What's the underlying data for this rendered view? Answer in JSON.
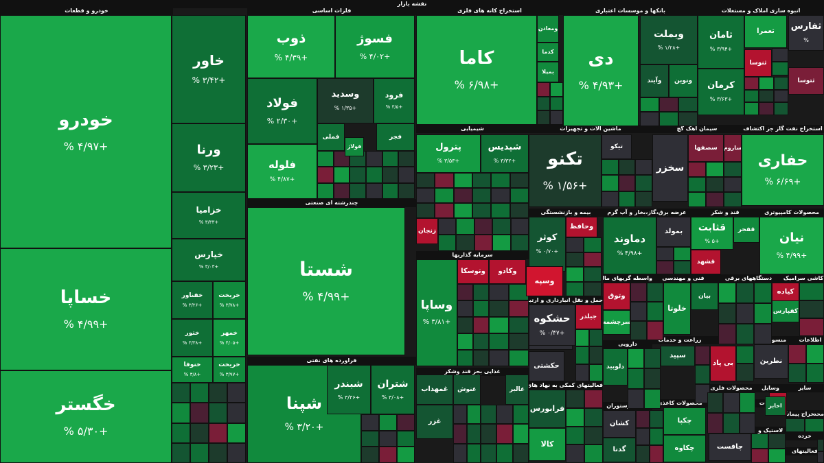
{
  "title": "نقشه بازار",
  "colors": {
    "g5": "#1aa84a",
    "g4": "#149b43",
    "g3": "#118a3d",
    "g2": "#0f6f36",
    "g1": "#145532",
    "g0": "#1d3b2c",
    "n": "#2f2f36",
    "r1": "#4a1f33",
    "r2": "#7a1e38",
    "r3": "#b3132f",
    "r4": "#d1152f"
  },
  "sectors": [
    {
      "label": "خودرو و قطعات"
    },
    {
      "label": "فلزات اساسی"
    },
    {
      "label": "استخراج کانه های فلزی"
    },
    {
      "label": "بانکها و موسسات اعتباری"
    },
    {
      "label": "انبوه سازی املاک و مستغلات"
    },
    {
      "label": "چندرشته ای صنعتی"
    },
    {
      "label": "شیمیایی"
    },
    {
      "label": "ماشین آلات و تجهیزات"
    },
    {
      "label": "سیمان آهک گچ"
    },
    {
      "label": "استخراج نفت گاز جز اکتشاف"
    },
    {
      "label": "بیمه و بازنشستگی"
    },
    {
      "label": "عرضه برق،گاز،بخار و آب گرم"
    },
    {
      "label": "قند و شکر"
    },
    {
      "label": "محصولات کامپیوتری"
    },
    {
      "label": "سرمایه گذاریها"
    },
    {
      "label": "فراورده های نفتی"
    },
    {
      "label": "فنی و مهندسی"
    },
    {
      "label": "واسطه گریهای مالی و پولی"
    },
    {
      "label": "دستگاههای برقی"
    },
    {
      "label": "کاشی سرامیک"
    },
    {
      "label": "حمل و نقل انبارداری و ارتباطات"
    },
    {
      "label": "دارویی"
    },
    {
      "label": "زراعت و خدمات"
    },
    {
      "label": "رایانه"
    },
    {
      "label": "منسوجات"
    },
    {
      "label": "اطلاعات"
    },
    {
      "label": "غذایی بجز قند وشکر"
    },
    {
      "label": "فعالیتهای کمکی به نهاد های مالی"
    },
    {
      "label": "هتل و رستوران"
    },
    {
      "label": "محصولات کاغذی"
    },
    {
      "label": "محصولات فلزی"
    },
    {
      "label": "سایر"
    },
    {
      "label": "وسایل"
    },
    {
      "label": "مخابرات"
    },
    {
      "label": "چاپ"
    },
    {
      "label": "لاستیک و"
    },
    {
      "label": "استخراج پیمانکاری"
    },
    {
      "label": "محصو"
    },
    {
      "label": "خرده"
    },
    {
      "label": "فعالیتهای"
    }
  ],
  "stocks": [
    {
      "name": "خودرو",
      "pct": "+۴/۹۷ %",
      "c": "g5"
    },
    {
      "name": "خساپا",
      "pct": "+۴/۹۹ %",
      "c": "g5"
    },
    {
      "name": "خگستر",
      "pct": "+۵/۳۰ %",
      "c": "g5"
    },
    {
      "name": "خاور",
      "pct": "+۳/۴۲ %",
      "c": "g2"
    },
    {
      "name": "ورنا",
      "pct": "+۳/۲۳ %",
      "c": "g2"
    },
    {
      "name": "خزامیا",
      "pct": "+۳/۳۳ %",
      "c": "g2"
    },
    {
      "name": "خپارس",
      "pct": "+۳/۰۳ %",
      "c": "g2"
    },
    {
      "name": "خفناور",
      "pct": "+۳/۲۶ %",
      "c": "g2"
    },
    {
      "name": "خریخت",
      "pct": "+۳/۷۸ %",
      "c": "g3"
    },
    {
      "name": "ختور",
      "pct": "+۳/۳۸ %",
      "c": "g2"
    },
    {
      "name": "خمهر",
      "pct": "+۴/۰۵ %",
      "c": "g4"
    },
    {
      "name": "خریخت",
      "pct": "+۳/۹۷ %",
      "c": "g3"
    },
    {
      "name": "خنوفا",
      "pct": "+۳/۸ %",
      "c": "g3"
    },
    {
      "name": "ذوب",
      "pct": "+۴/۳۹ %",
      "c": "g5"
    },
    {
      "name": "فسوژ",
      "pct": "+۴/۰۲ %",
      "c": "g4"
    },
    {
      "name": "فولاد",
      "pct": "+۲/۳۰ %",
      "c": "g2"
    },
    {
      "name": "وسدید",
      "pct": "+۱/۳۵ %",
      "c": "g0"
    },
    {
      "name": "فرود",
      "pct": "+۳/۵ %",
      "c": "g2"
    },
    {
      "name": "فلوله",
      "pct": "+۴/۸۷ %",
      "c": "g5"
    },
    {
      "name": "فملی",
      "pct": "",
      "c": "g2"
    },
    {
      "name": "فولاژ",
      "pct": "",
      "c": "g3"
    },
    {
      "name": "فجر",
      "pct": "",
      "c": "g2"
    },
    {
      "name": "کاما",
      "pct": "+۶/۹۸ %",
      "c": "g5"
    },
    {
      "name": "ومعادن",
      "pct": "",
      "c": "g3"
    },
    {
      "name": "کدما",
      "pct": "",
      "c": "g3"
    },
    {
      "name": "بمیلا",
      "pct": "",
      "c": "g3"
    },
    {
      "name": "دی",
      "pct": "+۴/۹۳ %",
      "c": "g5"
    },
    {
      "name": "وبملت",
      "pct": "+۱/۲۸ %",
      "c": "g1"
    },
    {
      "name": "وآیند",
      "pct": "",
      "c": "g1"
    },
    {
      "name": "ونوین",
      "pct": "",
      "c": "g2"
    },
    {
      "name": "ثامان",
      "pct": "+۳/۹۴ %",
      "c": "g2"
    },
    {
      "name": "کرمان",
      "pct": "+۳/۶۳ %",
      "c": "g2"
    },
    {
      "name": "ثفارس",
      "pct": "%",
      "c": "n"
    },
    {
      "name": "ثعمرا",
      "pct": "",
      "c": "g4"
    },
    {
      "name": "ثنوسا",
      "pct": "",
      "c": "r3"
    },
    {
      "name": "ثتوسا",
      "pct": "",
      "c": "r2"
    },
    {
      "name": "شستا",
      "pct": "+۴/۹۹ %",
      "c": "g5"
    },
    {
      "name": "پترول",
      "pct": "+۳/۵۳ %",
      "c": "g4"
    },
    {
      "name": "شپدیس",
      "pct": "+۳/۳۲ %",
      "c": "g2"
    },
    {
      "name": "زنجان",
      "pct": "",
      "c": "r3"
    },
    {
      "name": "تکنو",
      "pct": "+۱/۵۶ %",
      "c": "g0"
    },
    {
      "name": "تیکو",
      "pct": "",
      "c": "n"
    },
    {
      "name": "سخزر",
      "pct": "",
      "c": "n"
    },
    {
      "name": "سصفها",
      "pct": "",
      "c": "r2"
    },
    {
      "name": "ساروم",
      "pct": "",
      "c": "r2"
    },
    {
      "name": "حفاری",
      "pct": "+۶/۶۹ %",
      "c": "g5"
    },
    {
      "name": "کوثر",
      "pct": "+۰/۷۰ %",
      "c": "g1"
    },
    {
      "name": "وحافظ",
      "pct": "",
      "c": "r3"
    },
    {
      "name": "دماوند",
      "pct": "+۴/۹۸ %",
      "c": "g2"
    },
    {
      "name": "بمولد",
      "pct": "",
      "c": "n"
    },
    {
      "name": "قثابت",
      "pct": "+۵ %",
      "c": "g4"
    },
    {
      "name": "قفجر",
      "pct": "",
      "c": "g3"
    },
    {
      "name": "قشهد",
      "pct": "",
      "c": "r3"
    },
    {
      "name": "نیان",
      "pct": "+۴/۹۹ %",
      "c": "g5"
    },
    {
      "name": "وتوسکا",
      "pct": "",
      "c": "r3"
    },
    {
      "name": "وکادو",
      "pct": "",
      "c": "r3"
    },
    {
      "name": "وسپه",
      "pct": "",
      "c": "r4"
    },
    {
      "name": "وساپا",
      "pct": "+۳/۸۱ %",
      "c": "g3"
    },
    {
      "name": "شپنا",
      "pct": "+۳/۲۰ %",
      "c": "g3"
    },
    {
      "name": "شبندر",
      "pct": "+۳/۳۶ %",
      "c": "g2"
    },
    {
      "name": "شتران",
      "pct": "+۳/۰۸ %",
      "c": "g2"
    },
    {
      "name": "حفارس",
      "pct": "",
      "c": "n"
    },
    {
      "name": "حشکوه",
      "pct": "+۰/۴۷ %",
      "c": "n"
    },
    {
      "name": "حکشتی",
      "pct": "",
      "c": "n"
    },
    {
      "name": "جیلدر",
      "pct": "",
      "c": "r3"
    },
    {
      "name": "وتوق",
      "pct": "",
      "c": "r3"
    },
    {
      "name": "سرچشمه",
      "pct": "",
      "c": "g4"
    },
    {
      "name": "خلوتا",
      "pct": "",
      "c": "g3"
    },
    {
      "name": "بیان",
      "pct": "",
      "c": "g2"
    },
    {
      "name": "کیاده",
      "pct": "",
      "c": "r3"
    },
    {
      "name": "کفپارس",
      "pct": "",
      "c": "g3"
    },
    {
      "name": "دلوبید",
      "pct": "",
      "c": "g2"
    },
    {
      "name": "سپید",
      "pct": "",
      "c": "g1"
    },
    {
      "name": "بی پاد",
      "pct": "",
      "c": "r3"
    },
    {
      "name": "نطرین",
      "pct": "",
      "c": "n"
    },
    {
      "name": "غمهداب",
      "pct": "",
      "c": "g1"
    },
    {
      "name": "غنوش",
      "pct": "",
      "c": "g1"
    },
    {
      "name": "غالبر",
      "pct": "",
      "c": "g1"
    },
    {
      "name": "غزر",
      "pct": "",
      "c": "g1"
    },
    {
      "name": "فرابورس",
      "pct": "",
      "c": "g1"
    },
    {
      "name": "کالا",
      "pct": "",
      "c": "g4"
    },
    {
      "name": "کشان",
      "pct": "",
      "c": "n"
    },
    {
      "name": "گدنا",
      "pct": "",
      "c": "g1"
    },
    {
      "name": "چکپا",
      "pct": "",
      "c": "g3"
    },
    {
      "name": "چکاوه",
      "pct": "",
      "c": "g3"
    },
    {
      "name": "چافست",
      "pct": "",
      "c": "n"
    },
    {
      "name": "لپیام",
      "pct": "",
      "c": "r3"
    },
    {
      "name": "اخابر",
      "pct": "",
      "c": "g2"
    }
  ]
}
